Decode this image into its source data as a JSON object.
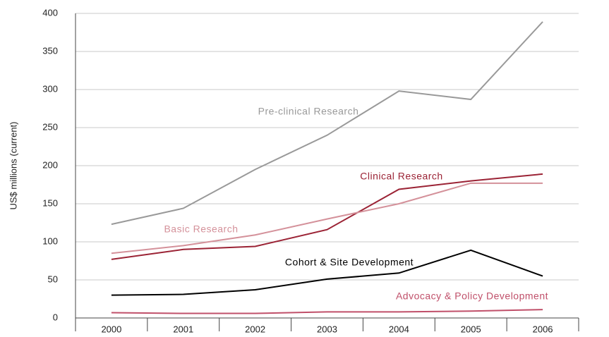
{
  "chart_data": {
    "type": "line",
    "y_label": "US$ millions (current)",
    "categories": [
      "2000",
      "2001",
      "2002",
      "2003",
      "2004",
      "2005",
      "2006"
    ],
    "series": [
      {
        "name": "Pre-clinical Research",
        "color": "#999999",
        "values": [
          123,
          144,
          195,
          240,
          298,
          287,
          389
        ]
      },
      {
        "name": "Clinical Research",
        "color": "#9b2335",
        "values": [
          77,
          90,
          94,
          116,
          169,
          180,
          189
        ]
      },
      {
        "name": "Basic Research",
        "color": "#d4919a",
        "values": [
          85,
          95,
          109,
          130,
          150,
          177,
          177
        ]
      },
      {
        "name": "Cohort & Site Development",
        "color": "#000000",
        "values": [
          30,
          31,
          37,
          51,
          59,
          89,
          55
        ]
      },
      {
        "name": "Advocacy & Policy Development",
        "color": "#c0506a",
        "values": [
          7,
          6,
          6,
          8,
          8,
          9,
          11
        ]
      }
    ],
    "ylim": [
      0,
      400
    ],
    "yticks": [
      0,
      50,
      100,
      150,
      200,
      250,
      300,
      350,
      400
    ],
    "grid": true
  }
}
